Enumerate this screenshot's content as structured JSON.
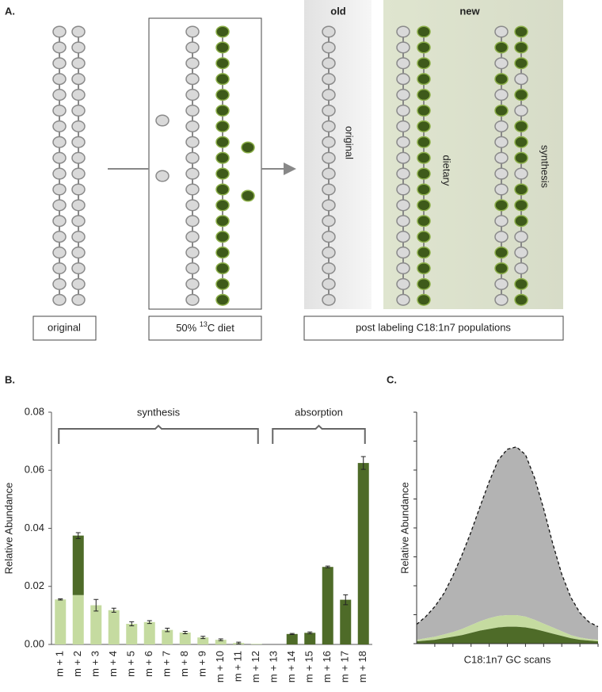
{
  "panel_a": {
    "label": "A.",
    "old": "old",
    "new": "new",
    "vertical_original": "original",
    "vertical_dietary": "dietary",
    "vertical_synthesis": "synthesis",
    "box_original": "original",
    "box_diet": {
      "prefix": "50% ",
      "sup": "13",
      "suffix": "C diet"
    },
    "box_post": "post labeling C18:1n7 populations"
  },
  "chart_data": [
    {
      "type": "bar",
      "label": "B.",
      "ylabel": "Relative Abundance",
      "annotations": [
        "synthesis",
        "absorption"
      ],
      "categories": [
        "m + 1",
        "m + 2",
        "m + 3",
        "m + 4",
        "m + 5",
        "m + 6",
        "m + 7",
        "m + 8",
        "m + 9",
        "m + 10",
        "m + 11",
        "m + 12",
        "m + 13",
        "m + 14",
        "m + 15",
        "m + 16",
        "m + 17",
        "m + 18"
      ],
      "series": [
        {
          "color": "#c5dba0",
          "values": [
            0.0155,
            0.017,
            0.0135,
            0.0118,
            0.0071,
            0.0077,
            0.005,
            0.0041,
            0.0024,
            0.0016,
            0.0005,
            0.0002,
            null,
            null,
            null,
            null,
            null,
            null
          ],
          "errors": [
            0.0002,
            null,
            0.002,
            0.0007,
            0.0007,
            0.0005,
            0.0006,
            0.0004,
            0.0004,
            0.0003,
            0.0003,
            null,
            null,
            null,
            null,
            null,
            null,
            null
          ]
        },
        {
          "color": "#4e6b28",
          "values": [
            null,
            0.0205,
            null,
            null,
            null,
            null,
            null,
            null,
            null,
            null,
            null,
            null,
            0,
            0.0036,
            0.004,
            0.0267,
            0.0154,
            0.0625
          ],
          "errors": [
            null,
            0.001,
            null,
            null,
            null,
            null,
            null,
            null,
            null,
            null,
            null,
            null,
            null,
            0.0002,
            0.0003,
            0.0003,
            0.0017,
            0.0022
          ]
        }
      ],
      "ylim": [
        0,
        0.08
      ],
      "yticks": [
        {
          "value": 0,
          "label": "0.00"
        },
        {
          "value": 0.02,
          "label": "0.02"
        },
        {
          "value": 0.04,
          "label": "0.04"
        },
        {
          "value": 0.06,
          "label": "0.06"
        },
        {
          "value": 0.08,
          "label": "0.08"
        }
      ]
    },
    {
      "type": "area",
      "label": "C.",
      "xlabel": "C18:1n7 GC scans",
      "ylabel": "Relative Abundance",
      "x": [
        0,
        1,
        2,
        3,
        4,
        5,
        6,
        7,
        8,
        9,
        10,
        11,
        12,
        13,
        14,
        15,
        16,
        17,
        18,
        19,
        20
      ],
      "xlim": [
        0,
        20
      ],
      "ylim": [
        0,
        300
      ],
      "series": [
        {
          "color": "#4e6b28",
          "values": [
            3,
            4,
            5,
            7,
            9,
            11,
            14,
            17,
            19,
            21,
            22,
            22,
            21,
            19,
            16,
            13,
            10,
            7,
            5,
            4,
            3
          ]
        },
        {
          "color": "#c5dba0",
          "values": [
            2,
            3,
            4,
            5,
            6,
            8,
            10,
            12,
            14,
            15,
            15,
            15,
            14,
            12,
            10,
            8,
            6,
            4,
            3,
            2,
            2
          ]
        },
        {
          "color": "#b3b3b3",
          "values": [
            20,
            28,
            39,
            53,
            73,
            96,
            121,
            149,
            177,
            202,
            215,
            218,
            210,
            184,
            149,
            109,
            74,
            49,
            32,
            22,
            17
          ]
        }
      ]
    }
  ]
}
